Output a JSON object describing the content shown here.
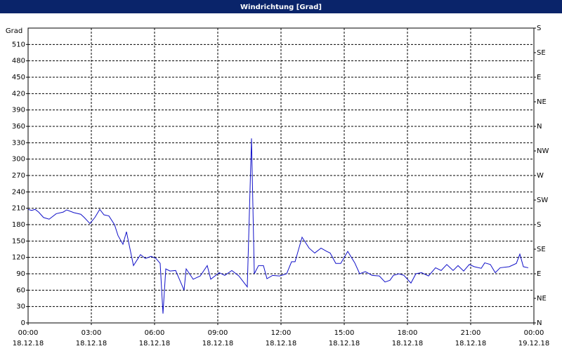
{
  "chart_data": {
    "type": "line",
    "title": "Windrichtung [Grad]",
    "y_label": "Grad",
    "x": [
      "18.12.18 00:00",
      "18.12.18 00:10",
      "18.12.18 00:20",
      "18.12.18 00:30",
      "18.12.18 00:44",
      "18.12.18 01:00",
      "18.12.18 01:20",
      "18.12.18 01:40",
      "18.12.18 01:50",
      "18.12.18 02:10",
      "18.12.18 02:30",
      "18.12.18 02:40",
      "18.12.18 02:56",
      "18.12.18 03:10",
      "18.12.18 03:24",
      "18.12.18 03:36",
      "18.12.18 03:50",
      "18.12.18 04:06",
      "18.12.18 04:16",
      "18.12.18 04:30",
      "18.12.18 04:40",
      "18.12.18 05:00",
      "18.12.18 05:20",
      "18.12.18 05:34",
      "18.12.18 05:50",
      "18.12.18 06:04",
      "18.12.18 06:16",
      "18.12.18 06:24",
      "18.12.18 06:32",
      "18.12.18 06:44",
      "18.12.18 07:00",
      "18.12.18 07:24",
      "18.12.18 07:30",
      "18.12.18 07:50",
      "18.12.18 08:10",
      "18.12.18 08:30",
      "18.12.18 08:40",
      "18.12.18 09:04",
      "18.12.18 09:20",
      "18.12.18 09:40",
      "18.12.18 10:00",
      "18.12.18 10:24",
      "18.12.18 10:36",
      "18.12.18 10:44",
      "18.12.18 10:56",
      "18.12.18 11:10",
      "18.12.18 11:20",
      "18.12.18 11:36",
      "18.12.18 11:56",
      "18.12.18 12:16",
      "18.12.18 12:30",
      "18.12.18 12:40",
      "18.12.18 13:00",
      "18.12.18 13:20",
      "18.12.18 13:36",
      "18.12.18 13:54",
      "18.12.18 14:10",
      "18.12.18 14:20",
      "18.12.18 14:36",
      "18.12.18 14:50",
      "18.12.18 15:10",
      "18.12.18 15:30",
      "18.12.18 15:44",
      "18.12.18 16:00",
      "18.12.18 16:20",
      "18.12.18 16:40",
      "18.12.18 16:56",
      "18.12.18 17:10",
      "18.12.18 17:20",
      "18.12.18 17:36",
      "18.12.18 17:50",
      "18.12.18 18:10",
      "18.12.18 18:24",
      "18.12.18 18:40",
      "18.12.18 19:00",
      "18.12.18 19:20",
      "18.12.18 19:36",
      "18.12.18 19:52",
      "18.12.18 20:10",
      "18.12.18 20:24",
      "18.12.18 20:40",
      "18.12.18 20:56",
      "18.12.18 21:10",
      "18.12.18 21:30",
      "18.12.18 21:40",
      "18.12.18 21:56",
      "18.12.18 22:10",
      "18.12.18 22:24",
      "18.12.18 22:50",
      "18.12.18 23:10",
      "18.12.18 23:20",
      "18.12.18 23:30",
      "18.12.18 23:44"
    ],
    "series": [
      {
        "color": "#1010c8",
        "values": [
          208,
          206,
          208,
          203,
          193,
          190,
          200,
          203,
          207,
          202,
          199,
          193,
          182,
          193,
          208,
          198,
          196,
          180,
          160,
          144,
          167,
          105,
          125,
          118,
          122,
          118,
          109,
          17,
          99,
          95,
          96,
          60,
          99,
          80,
          86,
          105,
          80,
          92,
          87,
          96,
          86,
          66,
          338,
          90,
          105,
          105,
          81,
          87,
          86,
          90,
          112,
          112,
          157,
          137,
          128,
          137,
          131,
          128,
          109,
          109,
          131,
          110,
          90,
          94,
          87,
          86,
          75,
          78,
          87,
          90,
          87,
          73,
          90,
          92,
          86,
          101,
          96,
          107,
          96,
          105,
          95,
          107,
          103,
          100,
          110,
          107,
          92,
          101,
          103,
          109,
          126,
          103,
          101
        ]
      }
    ],
    "xlim": [
      "18.12.18 00:00",
      "19.12.18 00:00"
    ],
    "xticks": [
      {
        "value": "18.12.18 00:00",
        "label": [
          "00:00",
          "18.12.18"
        ]
      },
      {
        "value": "18.12.18 03:00",
        "label": [
          "03:00",
          "18.12.18"
        ]
      },
      {
        "value": "18.12.18 06:00",
        "label": [
          "06:00",
          "18.12.18"
        ]
      },
      {
        "value": "18.12.18 09:00",
        "label": [
          "09:00",
          "18.12.18"
        ]
      },
      {
        "value": "18.12.18 12:00",
        "label": [
          "12:00",
          "18.12.18"
        ]
      },
      {
        "value": "18.12.18 15:00",
        "label": [
          "15:00",
          "18.12.18"
        ]
      },
      {
        "value": "18.12.18 18:00",
        "label": [
          "18:00",
          "18.12.18"
        ]
      },
      {
        "value": "18.12.18 21:00",
        "label": [
          "21:00",
          "18.12.18"
        ]
      },
      {
        "value": "19.12.18 00:00",
        "label": [
          "00:00",
          "19.12.18"
        ]
      }
    ],
    "ylim": [
      0,
      540
    ],
    "yticks": [
      0,
      30,
      60,
      90,
      120,
      150,
      180,
      210,
      240,
      270,
      300,
      330,
      360,
      390,
      420,
      450,
      480,
      510
    ],
    "y2lim": [
      0,
      540
    ],
    "y2ticks": [
      {
        "value": 0,
        "label": "N"
      },
      {
        "value": 45,
        "label": "NE"
      },
      {
        "value": 90,
        "label": "E"
      },
      {
        "value": 135,
        "label": "SE"
      },
      {
        "value": 180,
        "label": "S"
      },
      {
        "value": 225,
        "label": "SW"
      },
      {
        "value": 270,
        "label": "W"
      },
      {
        "value": 315,
        "label": "NW"
      },
      {
        "value": 360,
        "label": "N"
      },
      {
        "value": 405,
        "label": "NE"
      },
      {
        "value": 450,
        "label": "E"
      },
      {
        "value": 495,
        "label": "SE"
      },
      {
        "value": 540,
        "label": "S"
      }
    ],
    "grid": true
  }
}
